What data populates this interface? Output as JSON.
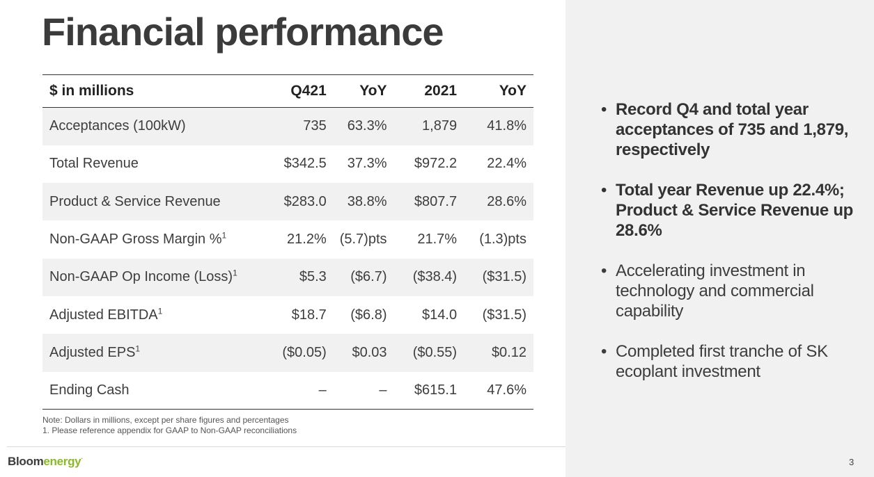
{
  "title": "Financial performance",
  "table": {
    "headers": [
      "$ in millions",
      "Q421",
      "YoY",
      "2021",
      "YoY"
    ],
    "rows": [
      {
        "label": "Acceptances (100kW)",
        "sup": "",
        "values": [
          "735",
          "63.3%",
          "1,879",
          "41.8%"
        ]
      },
      {
        "label": "Total Revenue",
        "sup": "",
        "values": [
          "$342.5",
          "37.3%",
          "$972.2",
          "22.4%"
        ]
      },
      {
        "label": "Product & Service Revenue",
        "sup": "",
        "values": [
          "$283.0",
          "38.8%",
          "$807.7",
          "28.6%"
        ]
      },
      {
        "label": "Non-GAAP Gross Margin %",
        "sup": "1",
        "values": [
          "21.2%",
          "(5.7)pts",
          "21.7%",
          "(1.3)pts"
        ]
      },
      {
        "label": "Non-GAAP Op Income (Loss)",
        "sup": "1",
        "values": [
          "$5.3",
          "($6.7)",
          "($38.4)",
          "($31.5)"
        ]
      },
      {
        "label": "Adjusted EBITDA",
        "sup": "1",
        "values": [
          "$18.7",
          "($6.8)",
          "$14.0",
          "($31.5)"
        ]
      },
      {
        "label": "Adjusted EPS",
        "sup": "1",
        "values": [
          "($0.05)",
          "$0.03",
          "($0.55)",
          "$0.12"
        ]
      },
      {
        "label": "Ending Cash",
        "sup": "",
        "values": [
          "–",
          "–",
          "$615.1",
          "47.6%"
        ]
      }
    ]
  },
  "notes": [
    "Note:  Dollars in millions, except per share figures and percentages",
    "1. Please reference appendix for GAAP to Non-GAAP reconciliations"
  ],
  "bullets": [
    {
      "text": "Record Q4 and total year acceptances of 735 and 1,879, respectively",
      "bold": true
    },
    {
      "text": "Total year Revenue up 22.4%; Product & Service Revenue up 28.6%",
      "bold": true
    },
    {
      "text": "Accelerating investment in technology and commercial capability",
      "bold": false
    },
    {
      "text": "Completed first tranche of SK ecoplant investment",
      "bold": false
    }
  ],
  "logo": {
    "part1": "Bloom",
    "part2": "energy",
    "mark": "·"
  },
  "page_number": "3",
  "colors": {
    "accent_green": "#8bb82c",
    "panel_gray": "#f1f1f1",
    "text_dark": "#3b3b3b"
  }
}
